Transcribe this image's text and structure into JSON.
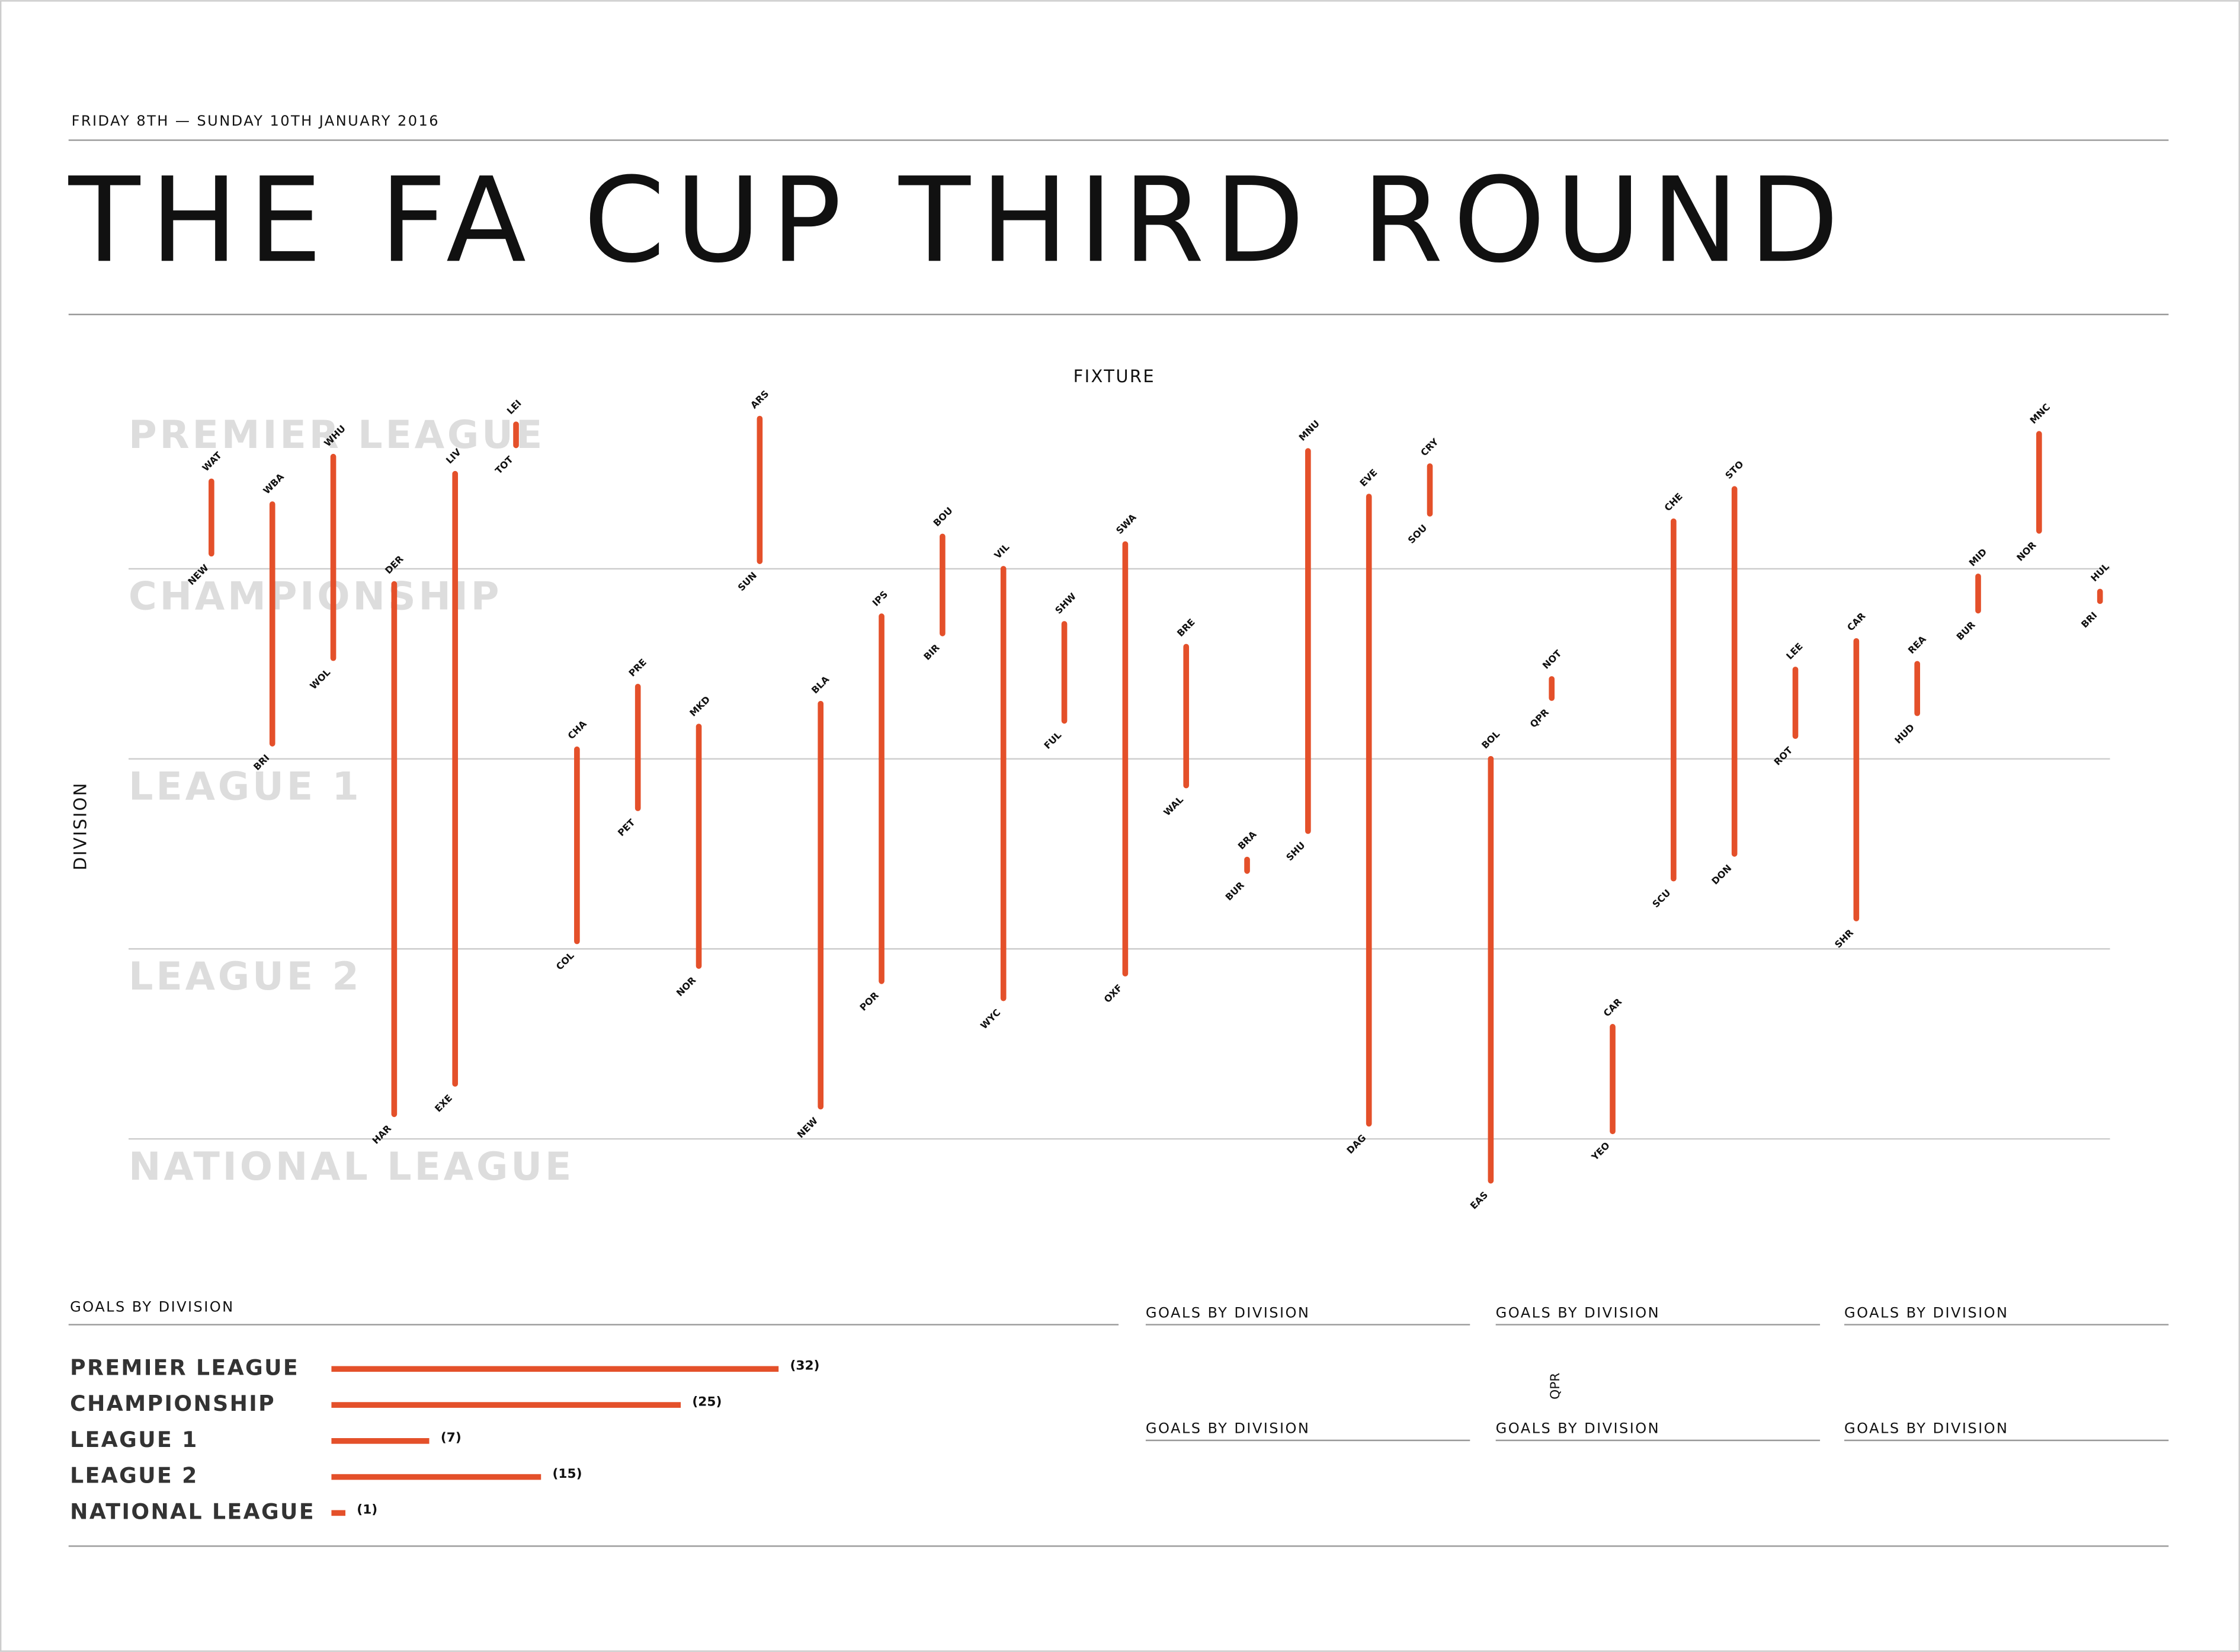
{
  "header": {
    "date": "FRIDAY 8TH — SUNDAY 10TH JANUARY 2016",
    "title": "THE FA CUP THIRD ROUND"
  },
  "chart_data": [
    {
      "type": "range",
      "x_label": "FIXTURE",
      "y_label": "DIVISION",
      "color": "#e4502a",
      "ylim": [
        0,
        4.5
      ],
      "yticks": [
        {
          "value": 0,
          "label": "PREMIER LEAGUE"
        },
        {
          "value": 1,
          "label": "CHAMPIONSHIP"
        },
        {
          "value": 2,
          "label": "LEAGUE 1"
        },
        {
          "value": 3,
          "label": "LEAGUE 2"
        },
        {
          "value": 4,
          "label": "NATIONAL LEAGUE"
        }
      ],
      "grid": true,
      "top_teams": [
        "WAT",
        "WBA",
        "WHU",
        "DER",
        "LIV",
        "LEI",
        "CHA",
        "PRE",
        "MKD",
        "ARS",
        "BLA",
        "IPS",
        "BOU",
        "VIL",
        "SHW",
        "SWA",
        "BRE",
        "BRA",
        "MNU",
        "EVE",
        "CRY",
        "BOL",
        "NOT",
        "CAR",
        "CHE",
        "STO",
        "LEE",
        "CAR",
        "REA",
        "MID",
        "MNC",
        "HUL"
      ],
      "bottom_teams": [
        "NEW",
        "BRI",
        "WOL",
        "HAR",
        "EXE",
        "TOT",
        "COL",
        "PET",
        "NOR",
        "SUN",
        "NEW",
        "POR",
        "BIR",
        "WYC",
        "FUL",
        "OXF",
        "WAL",
        "BUR",
        "SHU",
        "DAG",
        "SOU",
        "EAS",
        "QPR",
        "YEO",
        "SCU",
        "DON",
        "ROT",
        "SHR",
        "HUD",
        "BUR",
        "NOR",
        "BRI"
      ],
      "top_values": [
        0.54,
        0.66,
        0.41,
        1.08,
        0.5,
        0.24,
        1.95,
        1.62,
        1.83,
        0.21,
        1.71,
        1.25,
        0.83,
        1.0,
        1.29,
        0.87,
        1.41,
        2.53,
        0.38,
        0.62,
        0.46,
        2.0,
        1.58,
        3.41,
        0.75,
        0.58,
        1.53,
        1.38,
        1.5,
        1.04,
        0.29,
        1.12
      ],
      "bottom_values": [
        0.92,
        1.92,
        1.47,
        3.87,
        3.71,
        0.35,
        2.96,
        2.26,
        3.09,
        0.96,
        3.83,
        3.17,
        1.34,
        3.26,
        1.8,
        3.13,
        2.14,
        2.59,
        2.38,
        3.92,
        0.71,
        4.22,
        1.68,
        3.96,
        2.63,
        2.5,
        1.88,
        2.84,
        1.76,
        1.22,
        0.8,
        1.17
      ]
    },
    {
      "type": "hbar",
      "title": "GOALS BY DIVISION",
      "color": "#e4502a",
      "categories": [
        "PREMIER LEAGUE",
        "CHAMPIONSHIP",
        "LEAGUE 1",
        "LEAGUE 2",
        "NATIONAL LEAGUE"
      ],
      "values": [
        32,
        25,
        7,
        15,
        1
      ],
      "value_labels": [
        "(32)",
        "(25)",
        "(7)",
        "(15)",
        "(1)"
      ]
    }
  ],
  "panels": [
    "GOALS BY DIVISION",
    "GOALS BY DIVISION",
    "GOALS BY DIVISION",
    "GOALS BY DIVISION",
    "GOALS BY DIVISION",
    "GOALS BY DIVISION"
  ],
  "stray_label": "QPR"
}
